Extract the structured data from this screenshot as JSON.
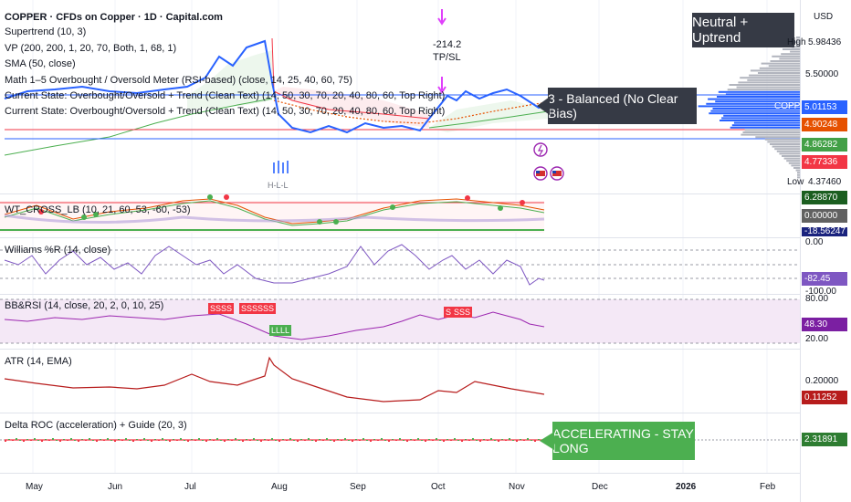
{
  "header": {
    "title": "COPPER · CFDs on Copper · 1D · Capital.com",
    "currency": "USD"
  },
  "indicators": {
    "supertrend": "Supertrend (10, 3)",
    "vp": "VP (200, 200, 1, 20, 70, Both, 1, 68, 1)",
    "sma": "SMA (50, close)",
    "math": "Math 1–5 Overbought / Oversold Meter (RSI-based) (close, 14, 25, 40, 60, 75)",
    "state1": "Current State: Overbought/Oversold + Trend (Clean Text) (14, 50, 30, 70, 20, 40, 80, 60, Top Right)",
    "state2": "Current State: Overbought/Oversold + Trend (Clean Text) (14, 50, 30, 70, 20, 40, 80, 60, Top Right)",
    "wt": "WT_CROSS_LB (10, 21, 60, 53, -60, -53)",
    "williams": "Williams %R (14, close)",
    "bbrsi": "BB&RSI (14, close, 20, 2, 0, 10, 25)",
    "atr": "ATR (14, EMA)",
    "delta": "Delta ROC (acceleration) + Guide (20, 3)"
  },
  "badges": {
    "neutral": "Neutral + Uptrend",
    "balanced": "3 - Balanced (No Clear Bias)",
    "accelerating": "ACCELERATING - STAY LONG",
    "tpsl_value": "-214.2",
    "tpsl_label": "TP/SL",
    "hl_label": "H-L-L",
    "bbrsi_sell1": "SSSS",
    "bbrsi_sell2": "SSSSSS",
    "bbrsi_buy": "LLLL",
    "bbrsi_sell3": "S",
    "bbrsi_sell4": "SSS"
  },
  "price_axis": {
    "high_label": "High",
    "high": "5.98436",
    "p550": "5.50000",
    "copper_label": "COPPER",
    "copper": "5.01153",
    "red1": "4.90248",
    "green1": "4.86282",
    "red2": "4.77336",
    "low_label": "Low",
    "low": "4.37460"
  },
  "wt_axis": {
    "v1": "6.28870",
    "v2": "0.00000",
    "v3": "-18.56247"
  },
  "williams_axis": {
    "top": "0.00",
    "value": "-82.45",
    "bottom": "-100.00"
  },
  "bbrsi_axis": {
    "top": "80.00",
    "value": "48.30",
    "bottom": "20.00"
  },
  "atr_axis": {
    "ref": "0.20000",
    "value": "0.11252"
  },
  "delta_axis": {
    "value": "2.31891"
  },
  "time_axis": [
    "May",
    "Jun",
    "Jul",
    "Aug",
    "Sep",
    "Oct",
    "Nov",
    "Dec",
    "2026",
    "Feb"
  ],
  "colors": {
    "price_line": "#2962ff",
    "bull": "#4caf50",
    "bear": "#f23645",
    "badge_dark": "#363a45",
    "accel_green": "#4caf50",
    "wt_purple": "#9c27b0",
    "williams": "#7e57c2",
    "atr": "#b71c1c"
  }
}
